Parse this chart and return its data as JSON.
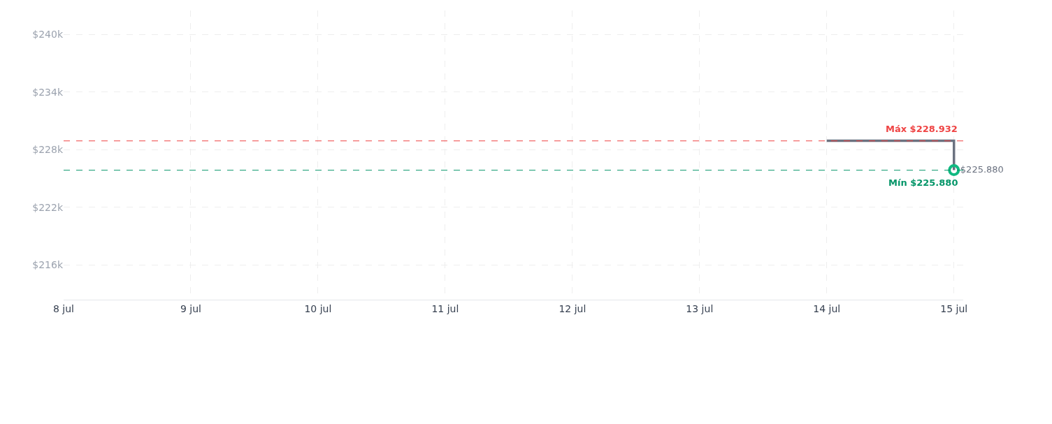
{
  "chart_data": {
    "type": "step",
    "x": [
      "--07-14",
      "--07-15"
    ],
    "series": [
      {
        "color": "#6b7280",
        "values": [
          228932,
          225880
        ]
      },
      {
        "type": "scatter",
        "x": [
          "--07-15"
        ],
        "color": "#10b981",
        "values": [
          225880
        ],
        "marker": "circle",
        "value_labels": [
          "$225.880"
        ]
      }
    ],
    "ylim": [
      212400,
      242500
    ],
    "yticks": [
      {
        "value": 216000,
        "label": "$216k"
      },
      {
        "value": 222000,
        "label": "$222k"
      },
      {
        "value": 228000,
        "label": "$228k"
      },
      {
        "value": 234000,
        "label": "$234k"
      },
      {
        "value": 240000,
        "label": "$240k"
      }
    ],
    "xlim": [
      "--07-08",
      "--07-15T01:45"
    ],
    "xticks": [
      {
        "value": "--07-08",
        "label": "8 jul"
      },
      {
        "value": "--07-09",
        "label": "9 jul"
      },
      {
        "value": "--07-10",
        "label": "10 jul"
      },
      {
        "value": "--07-11",
        "label": "11 jul"
      },
      {
        "value": "--07-12",
        "label": "12 jul"
      },
      {
        "value": "--07-13",
        "label": "13 jul"
      },
      {
        "value": "--07-14",
        "label": "14 jul"
      },
      {
        "value": "--07-15",
        "label": "15 jul"
      }
    ],
    "ref_lines": [
      {
        "axis": "y",
        "value": 228932,
        "label": "Máx $228.932",
        "color": "#ef4444",
        "line_style": "dashed"
      },
      {
        "axis": "y",
        "value": 225880,
        "label": "Mín $225.880",
        "color": "#059669",
        "line_style": "dashed"
      }
    ],
    "grid": true
  }
}
